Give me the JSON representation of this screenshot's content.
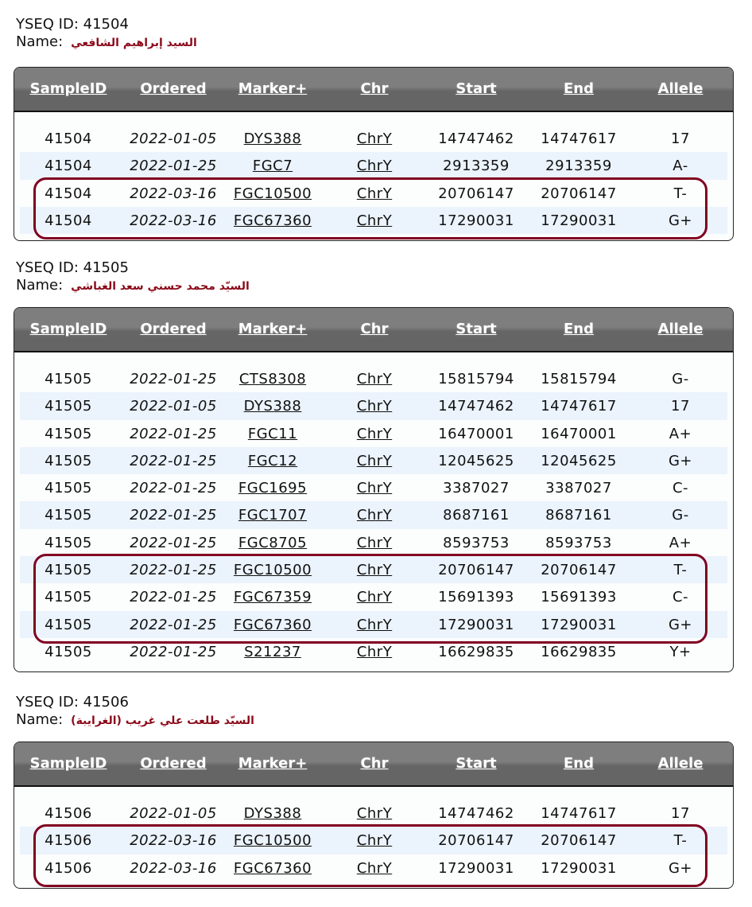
{
  "columns": [
    "SampleID",
    "Ordered",
    "Marker+",
    "Chr",
    "Start",
    "End",
    "Allele"
  ],
  "highlight_color": "#800020",
  "samples": [
    {
      "id_label": "YSEQ ID: 41504",
      "name_label": "Name:",
      "name": "السيد إبراهيم الشافعي",
      "rows": [
        [
          "41504",
          "2022-01-05",
          "DYS388",
          "ChrY",
          "14747462",
          "14747617",
          "17",
          false
        ],
        [
          "41504",
          "2022-01-25",
          "FGC7",
          "ChrY",
          "2913359",
          "2913359",
          "A-",
          false
        ],
        [
          "41504",
          "2022-03-16",
          "FGC10500",
          "ChrY",
          "20706147",
          "20706147",
          "T-",
          true
        ],
        [
          "41504",
          "2022-03-16",
          "FGC67360",
          "ChrY",
          "17290031",
          "17290031",
          "G+",
          true
        ]
      ]
    },
    {
      "id_label": "YSEQ ID: 41505",
      "name_label": "Name:",
      "name": "السيّد محمد حسني سعد الغباشي",
      "rows": [
        [
          "41505",
          "2022-01-25",
          "CTS8308",
          "ChrY",
          "15815794",
          "15815794",
          "G-",
          false
        ],
        [
          "41505",
          "2022-01-05",
          "DYS388",
          "ChrY",
          "14747462",
          "14747617",
          "17",
          false
        ],
        [
          "41505",
          "2022-01-25",
          "FGC11",
          "ChrY",
          "16470001",
          "16470001",
          "A+",
          false
        ],
        [
          "41505",
          "2022-01-25",
          "FGC12",
          "ChrY",
          "12045625",
          "12045625",
          "G+",
          false
        ],
        [
          "41505",
          "2022-01-25",
          "FGC1695",
          "ChrY",
          "3387027",
          "3387027",
          "C-",
          false
        ],
        [
          "41505",
          "2022-01-25",
          "FGC1707",
          "ChrY",
          "8687161",
          "8687161",
          "G-",
          false
        ],
        [
          "41505",
          "2022-01-25",
          "FGC8705",
          "ChrY",
          "8593753",
          "8593753",
          "A+",
          false
        ],
        [
          "41505",
          "2022-01-25",
          "FGC10500",
          "ChrY",
          "20706147",
          "20706147",
          "T-",
          true
        ],
        [
          "41505",
          "2022-01-25",
          "FGC67359",
          "ChrY",
          "15691393",
          "15691393",
          "C-",
          true
        ],
        [
          "41505",
          "2022-01-25",
          "FGC67360",
          "ChrY",
          "17290031",
          "17290031",
          "G+",
          true
        ],
        [
          "41505",
          "2022-01-25",
          "S21237",
          "ChrY",
          "16629835",
          "16629835",
          "Y+",
          false
        ]
      ]
    },
    {
      "id_label": "YSEQ ID: 41506",
      "name_label": "Name:",
      "name": "السيّد طلعت علي غريب (الغرايبة)",
      "rows": [
        [
          "41506",
          "2022-01-05",
          "DYS388",
          "ChrY",
          "14747462",
          "14747617",
          "17",
          false
        ],
        [
          "41506",
          "2022-03-16",
          "FGC10500",
          "ChrY",
          "20706147",
          "20706147",
          "T-",
          true
        ],
        [
          "41506",
          "2022-03-16",
          "FGC67360",
          "ChrY",
          "17290031",
          "17290031",
          "G+",
          true
        ]
      ]
    }
  ]
}
